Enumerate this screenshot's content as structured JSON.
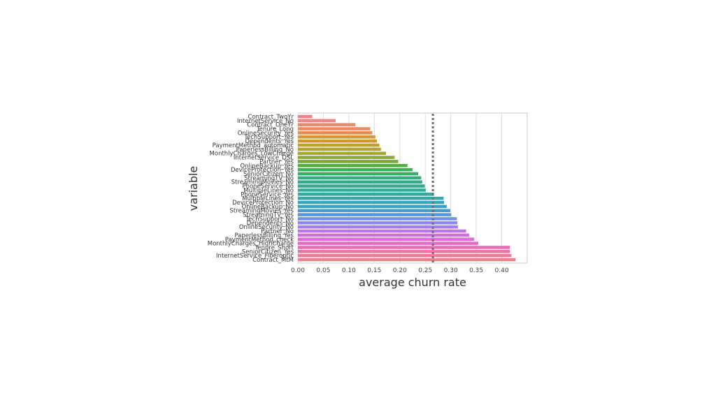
{
  "chart_data": {
    "type": "bar",
    "orientation": "horizontal",
    "xlabel": "average churn rate",
    "ylabel": "variable",
    "xlim": [
      0,
      0.45
    ],
    "x_ticks": [
      "0.00",
      "0.05",
      "0.10",
      "0.15",
      "0.20",
      "0.25",
      "0.30",
      "0.35",
      "0.40"
    ],
    "grid": "vertical",
    "reference_line": {
      "value": 0.265,
      "style": "dotted",
      "color": "#6e6e6e"
    },
    "bars": [
      {
        "label": "Contract_TwoYr",
        "value": 0.028
      },
      {
        "label": "InternetService_No",
        "value": 0.074
      },
      {
        "label": "Contract_OneYr",
        "value": 0.113
      },
      {
        "label": "Tenure_Long",
        "value": 0.142
      },
      {
        "label": "OnlineSecurity_Yes",
        "value": 0.146
      },
      {
        "label": "TechSupport_Yes",
        "value": 0.152
      },
      {
        "label": "Dependents_Yes",
        "value": 0.155
      },
      {
        "label": "PaymentMethod_automatic",
        "value": 0.16
      },
      {
        "label": "PaperlessBilling_No",
        "value": 0.163
      },
      {
        "label": "MonthlyCharges_LowCharge",
        "value": 0.173
      },
      {
        "label": "InternetService_DSL",
        "value": 0.19
      },
      {
        "label": "Partner_Yes",
        "value": 0.197
      },
      {
        "label": "OnlineBackup_Yes",
        "value": 0.215
      },
      {
        "label": "DeviceProtection_Yes",
        "value": 0.225
      },
      {
        "label": "SeniorCitizen_No",
        "value": 0.236
      },
      {
        "label": "StreamingTV_No",
        "value": 0.242
      },
      {
        "label": "StreamingMovies_No",
        "value": 0.244
      },
      {
        "label": "PhoneService_No",
        "value": 0.249
      },
      {
        "label": "MultipleLines_No",
        "value": 0.251
      },
      {
        "label": "PhoneService_Yes",
        "value": 0.267
      },
      {
        "label": "MultipleLines_Yes",
        "value": 0.286
      },
      {
        "label": "DeviceProtection_No",
        "value": 0.287
      },
      {
        "label": "OnlineBackup_No",
        "value": 0.292
      },
      {
        "label": "StreamingMovies_Yes",
        "value": 0.299
      },
      {
        "label": "StreamingTV_Yes",
        "value": 0.301
      },
      {
        "label": "TechSupport_No",
        "value": 0.312
      },
      {
        "label": "Dependents_No",
        "value": 0.313
      },
      {
        "label": "OnlineSecurity_No",
        "value": 0.314
      },
      {
        "label": "Partner_No",
        "value": 0.33
      },
      {
        "label": "PaperlessBilling_Yes",
        "value": 0.336
      },
      {
        "label": "PaymentMethod_check",
        "value": 0.346
      },
      {
        "label": "MonthlyCharges_HighCharge",
        "value": 0.354
      },
      {
        "label": "Tenure_Short",
        "value": 0.416
      },
      {
        "label": "SeniorCitizen_Yes",
        "value": 0.416
      },
      {
        "label": "InternetService_Fiberoptic",
        "value": 0.419
      },
      {
        "label": "Contract_MtM",
        "value": 0.427
      }
    ],
    "colors": [
      "#f0828a",
      "#f08586",
      "#ee8a6f",
      "#e88c58",
      "#e18f4a",
      "#d6963c",
      "#cb9a35",
      "#bfa035",
      "#b1a336",
      "#a2a737",
      "#8eab38",
      "#74ae38",
      "#4fb13d",
      "#3db055",
      "#37ae6c",
      "#36ad7b",
      "#36ab86",
      "#37aa90",
      "#38a999",
      "#39a8a1",
      "#3aa6aa",
      "#3ba4b5",
      "#3ea1c1",
      "#4a9dcf",
      "#5c97dd",
      "#7290e8",
      "#8d88ea",
      "#a67ee9",
      "#bb76e6",
      "#cf6ee0",
      "#df6bd4",
      "#e86ac5",
      "#ec6eb5",
      "#ee74a5",
      "#ef7a98",
      "#f07f8e"
    ]
  }
}
